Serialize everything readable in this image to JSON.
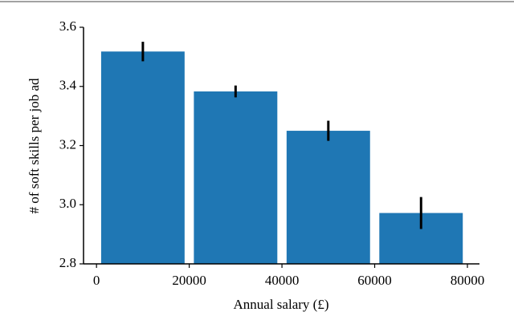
{
  "chart_data": {
    "type": "bar",
    "x_label": "Annual salary (£)",
    "y_label": "# of soft skills per job ad",
    "x": [
      10000,
      30000,
      50000,
      70000
    ],
    "values": [
      3.518,
      3.383,
      3.25,
      2.972
    ],
    "errors": [
      0.033,
      0.02,
      0.034,
      0.054
    ],
    "color": "#1f77b4",
    "error_color": "#000000",
    "xlim": [
      -2800,
      82600
    ],
    "xticks": [
      0,
      20000,
      40000,
      60000,
      80000
    ],
    "ylim": [
      2.8,
      3.6
    ],
    "yticks": [
      2.8,
      {
        "value": 3,
        "label": "3.0"
      },
      3.2,
      3.4,
      3.6
    ],
    "grid": false
  }
}
